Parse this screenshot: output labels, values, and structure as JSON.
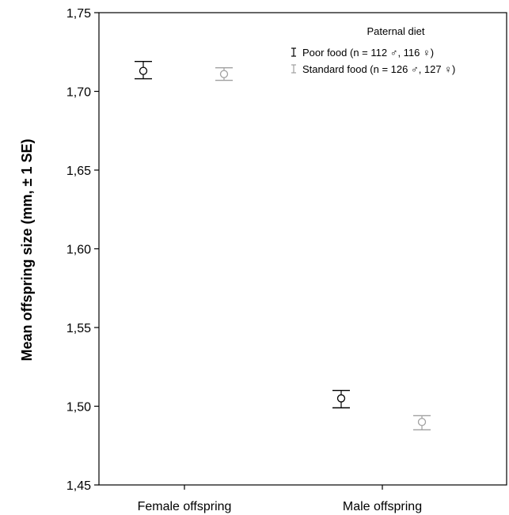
{
  "chart_data": {
    "type": "scatter",
    "subtype": "error-bar",
    "categories": [
      "Female offspring",
      "Male offspring"
    ],
    "ylabel": "Mean offspring size (mm, ± 1 SE)",
    "xlabel": "",
    "ylim": [
      1.45,
      1.75
    ],
    "yticks": [
      "1,45",
      "1,50",
      "1,55",
      "1,60",
      "1,65",
      "1,70",
      "1,75"
    ],
    "ytick_values": [
      1.45,
      1.5,
      1.55,
      1.6,
      1.65,
      1.7,
      1.75
    ],
    "grid": false,
    "legend": {
      "title": "Paternal diet",
      "placement": "top-right",
      "entries": [
        "Poor food (n = 112 ♂, 116 ♀)",
        "Standard food (n = 126 ♂, 127 ♀)"
      ]
    },
    "series": [
      {
        "name": "Poor food",
        "color": "#000000",
        "values": [
          1.713,
          1.505
        ],
        "err_low": [
          1.708,
          1.499
        ],
        "err_high": [
          1.719,
          1.51
        ]
      },
      {
        "name": "Standard food",
        "color": "#a0a0a0",
        "values": [
          1.711,
          1.49
        ],
        "err_low": [
          1.707,
          1.485
        ],
        "err_high": [
          1.715,
          1.494
        ]
      }
    ]
  }
}
